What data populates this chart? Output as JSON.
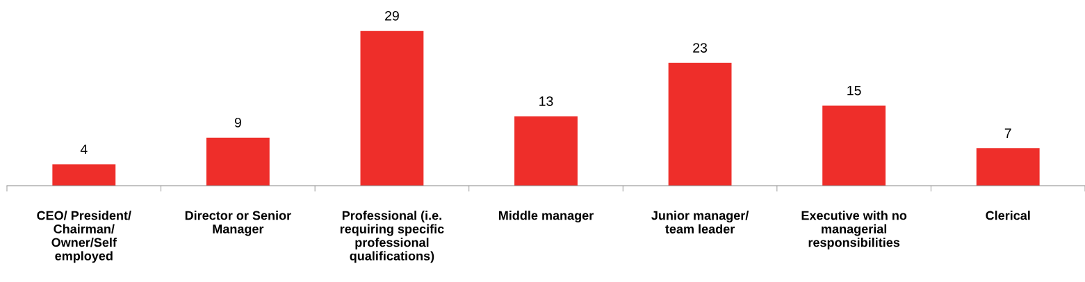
{
  "chart_data": {
    "type": "bar",
    "categories": [
      "CEO/ President/\nChairman/\nOwner/Self\nemployed",
      "Director or Senior\nManager",
      "Professional (i.e.\nrequiring specific\nprofessional\nqualifications)",
      "Middle manager",
      "Junior manager/\nteam leader",
      "Executive with no\nmanagerial\nresponsibilities",
      "Clerical"
    ],
    "values": [
      4,
      9,
      29,
      13,
      23,
      15,
      7
    ],
    "color": "#ee2e2a",
    "data_labels": true,
    "grid": false,
    "legend": false
  }
}
